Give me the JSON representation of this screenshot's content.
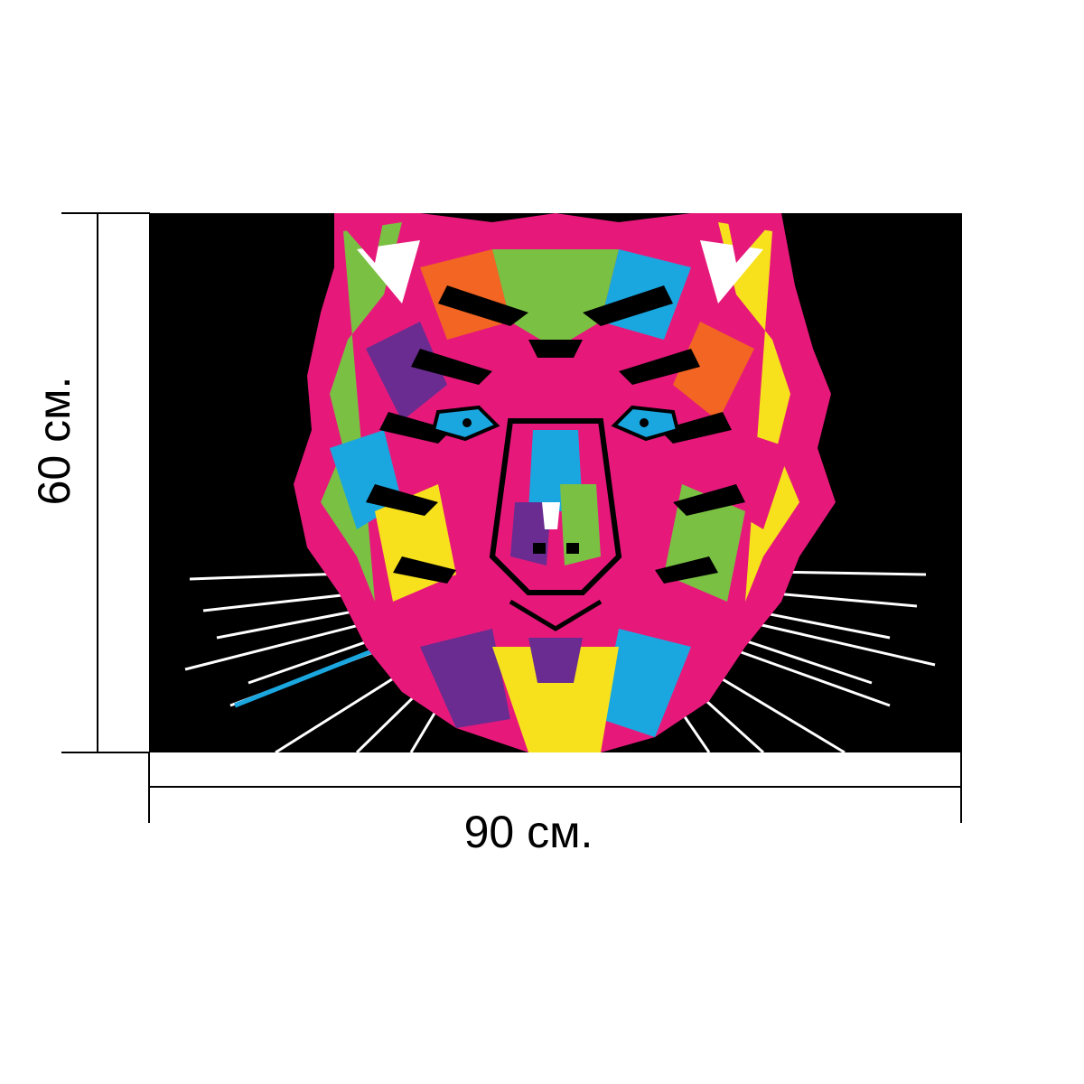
{
  "product_dimensions": {
    "width_label": "90 см.",
    "height_label": "60 см."
  },
  "artwork": {
    "subject": "tiger-face-icon",
    "background_color": "#000000",
    "palette": [
      "#e6197b",
      "#1aa7e0",
      "#7ac143",
      "#f7e11d",
      "#f26522",
      "#6a2c91",
      "#ffffff"
    ]
  },
  "colors": {
    "dimension_lines": "#000000",
    "page_background": "#ffffff"
  }
}
